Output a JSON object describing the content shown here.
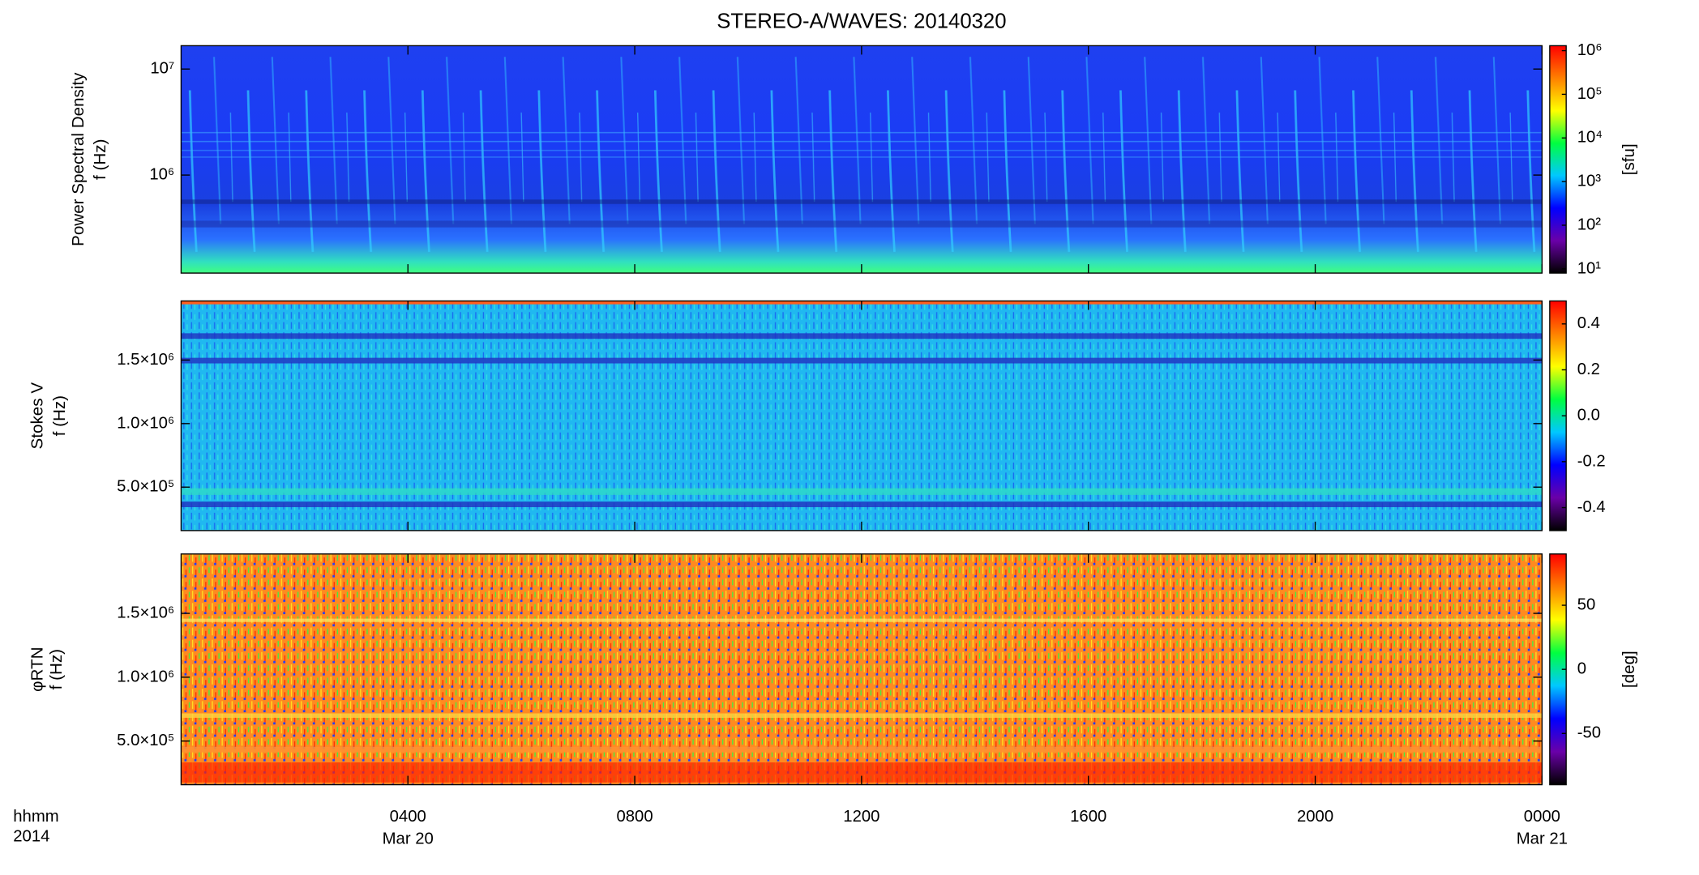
{
  "title": "STEREO-A/WAVES: 20140320",
  "chart_data": [
    {
      "type": "heatmap",
      "ylabel": [
        "Power Spectral Density",
        "f (Hz)"
      ],
      "ylim": [
        119000,
        16600000
      ],
      "log": true,
      "yticks": [
        {
          "value": 1000000,
          "label": "10⁶"
        },
        {
          "value": 10000000,
          "label": "10⁷"
        }
      ],
      "xlim": [
        0,
        24
      ],
      "colorbar": {
        "label": "[sfu]",
        "lim": [
          8,
          1300000
        ],
        "log": true,
        "colors": [
          "#000000",
          "#6a00a8",
          "#0000ff",
          "#00c8ff",
          "#00ff40",
          "#ffff00",
          "#ff8000",
          "#ff0000"
        ],
        "ticks": [
          {
            "value": 10,
            "label": "10¹"
          },
          {
            "value": 100,
            "label": "10²"
          },
          {
            "value": 1000,
            "label": "10³"
          },
          {
            "value": 10000,
            "label": "10⁴"
          },
          {
            "value": 100000,
            "label": "10⁵"
          },
          {
            "value": 1000000,
            "label": "10⁶"
          }
        ]
      }
    },
    {
      "type": "heatmap",
      "ylabel": [
        "Stokes V",
        "f (Hz)"
      ],
      "ylim": [
        158000,
        1965000
      ],
      "log": false,
      "yticks": [
        {
          "value": 500000,
          "label": "5.0×10⁵"
        },
        {
          "value": 1000000,
          "label": "1.0×10⁶"
        },
        {
          "value": 1500000,
          "label": "1.5×10⁶"
        }
      ],
      "xlim": [
        0,
        24
      ],
      "colorbar": {
        "lim": [
          -0.5,
          0.5
        ],
        "log": false,
        "colors": [
          "#000000",
          "#6a00a8",
          "#0000ff",
          "#00c8ff",
          "#00ff40",
          "#ffff00",
          "#ff8000",
          "#ff0000"
        ],
        "ticks": [
          -0.4,
          -0.2,
          {
            "value": 0,
            "label": "0.0"
          },
          0.2,
          0.4
        ]
      }
    },
    {
      "type": "heatmap",
      "ylabel": [
        "φRTN",
        "f (Hz)"
      ],
      "ylim": [
        158000,
        1965000
      ],
      "log": false,
      "yticks": [
        {
          "value": 500000,
          "label": "5.0×10⁵"
        },
        {
          "value": 1000000,
          "label": "1.0×10⁶"
        },
        {
          "value": 1500000,
          "label": "1.5×10⁶"
        }
      ],
      "xlim": [
        0,
        24
      ],
      "xticks": [
        {
          "value": 4,
          "label": "0400"
        },
        {
          "value": 8,
          "label": "0800"
        },
        {
          "value": 12,
          "label": "1200"
        },
        {
          "value": 16,
          "label": "1600"
        },
        {
          "value": 20,
          "label": "2000"
        },
        {
          "value": 24,
          "label": "0000"
        }
      ],
      "xdates": [
        {
          "value": 4,
          "label": "Mar 20"
        },
        {
          "value": 24,
          "label": "Mar 21"
        }
      ],
      "xlabel": [
        "hhmm",
        "2014"
      ],
      "colorbar": {
        "label": "[deg]",
        "lim": [
          -90,
          90
        ],
        "log": false,
        "colors": [
          "#000000",
          "#6a00a8",
          "#0000ff",
          "#00c8ff",
          "#00ff40",
          "#ffff00",
          "#ff8000",
          "#ff0000"
        ],
        "ticks": [
          -50,
          0,
          50
        ]
      }
    }
  ]
}
